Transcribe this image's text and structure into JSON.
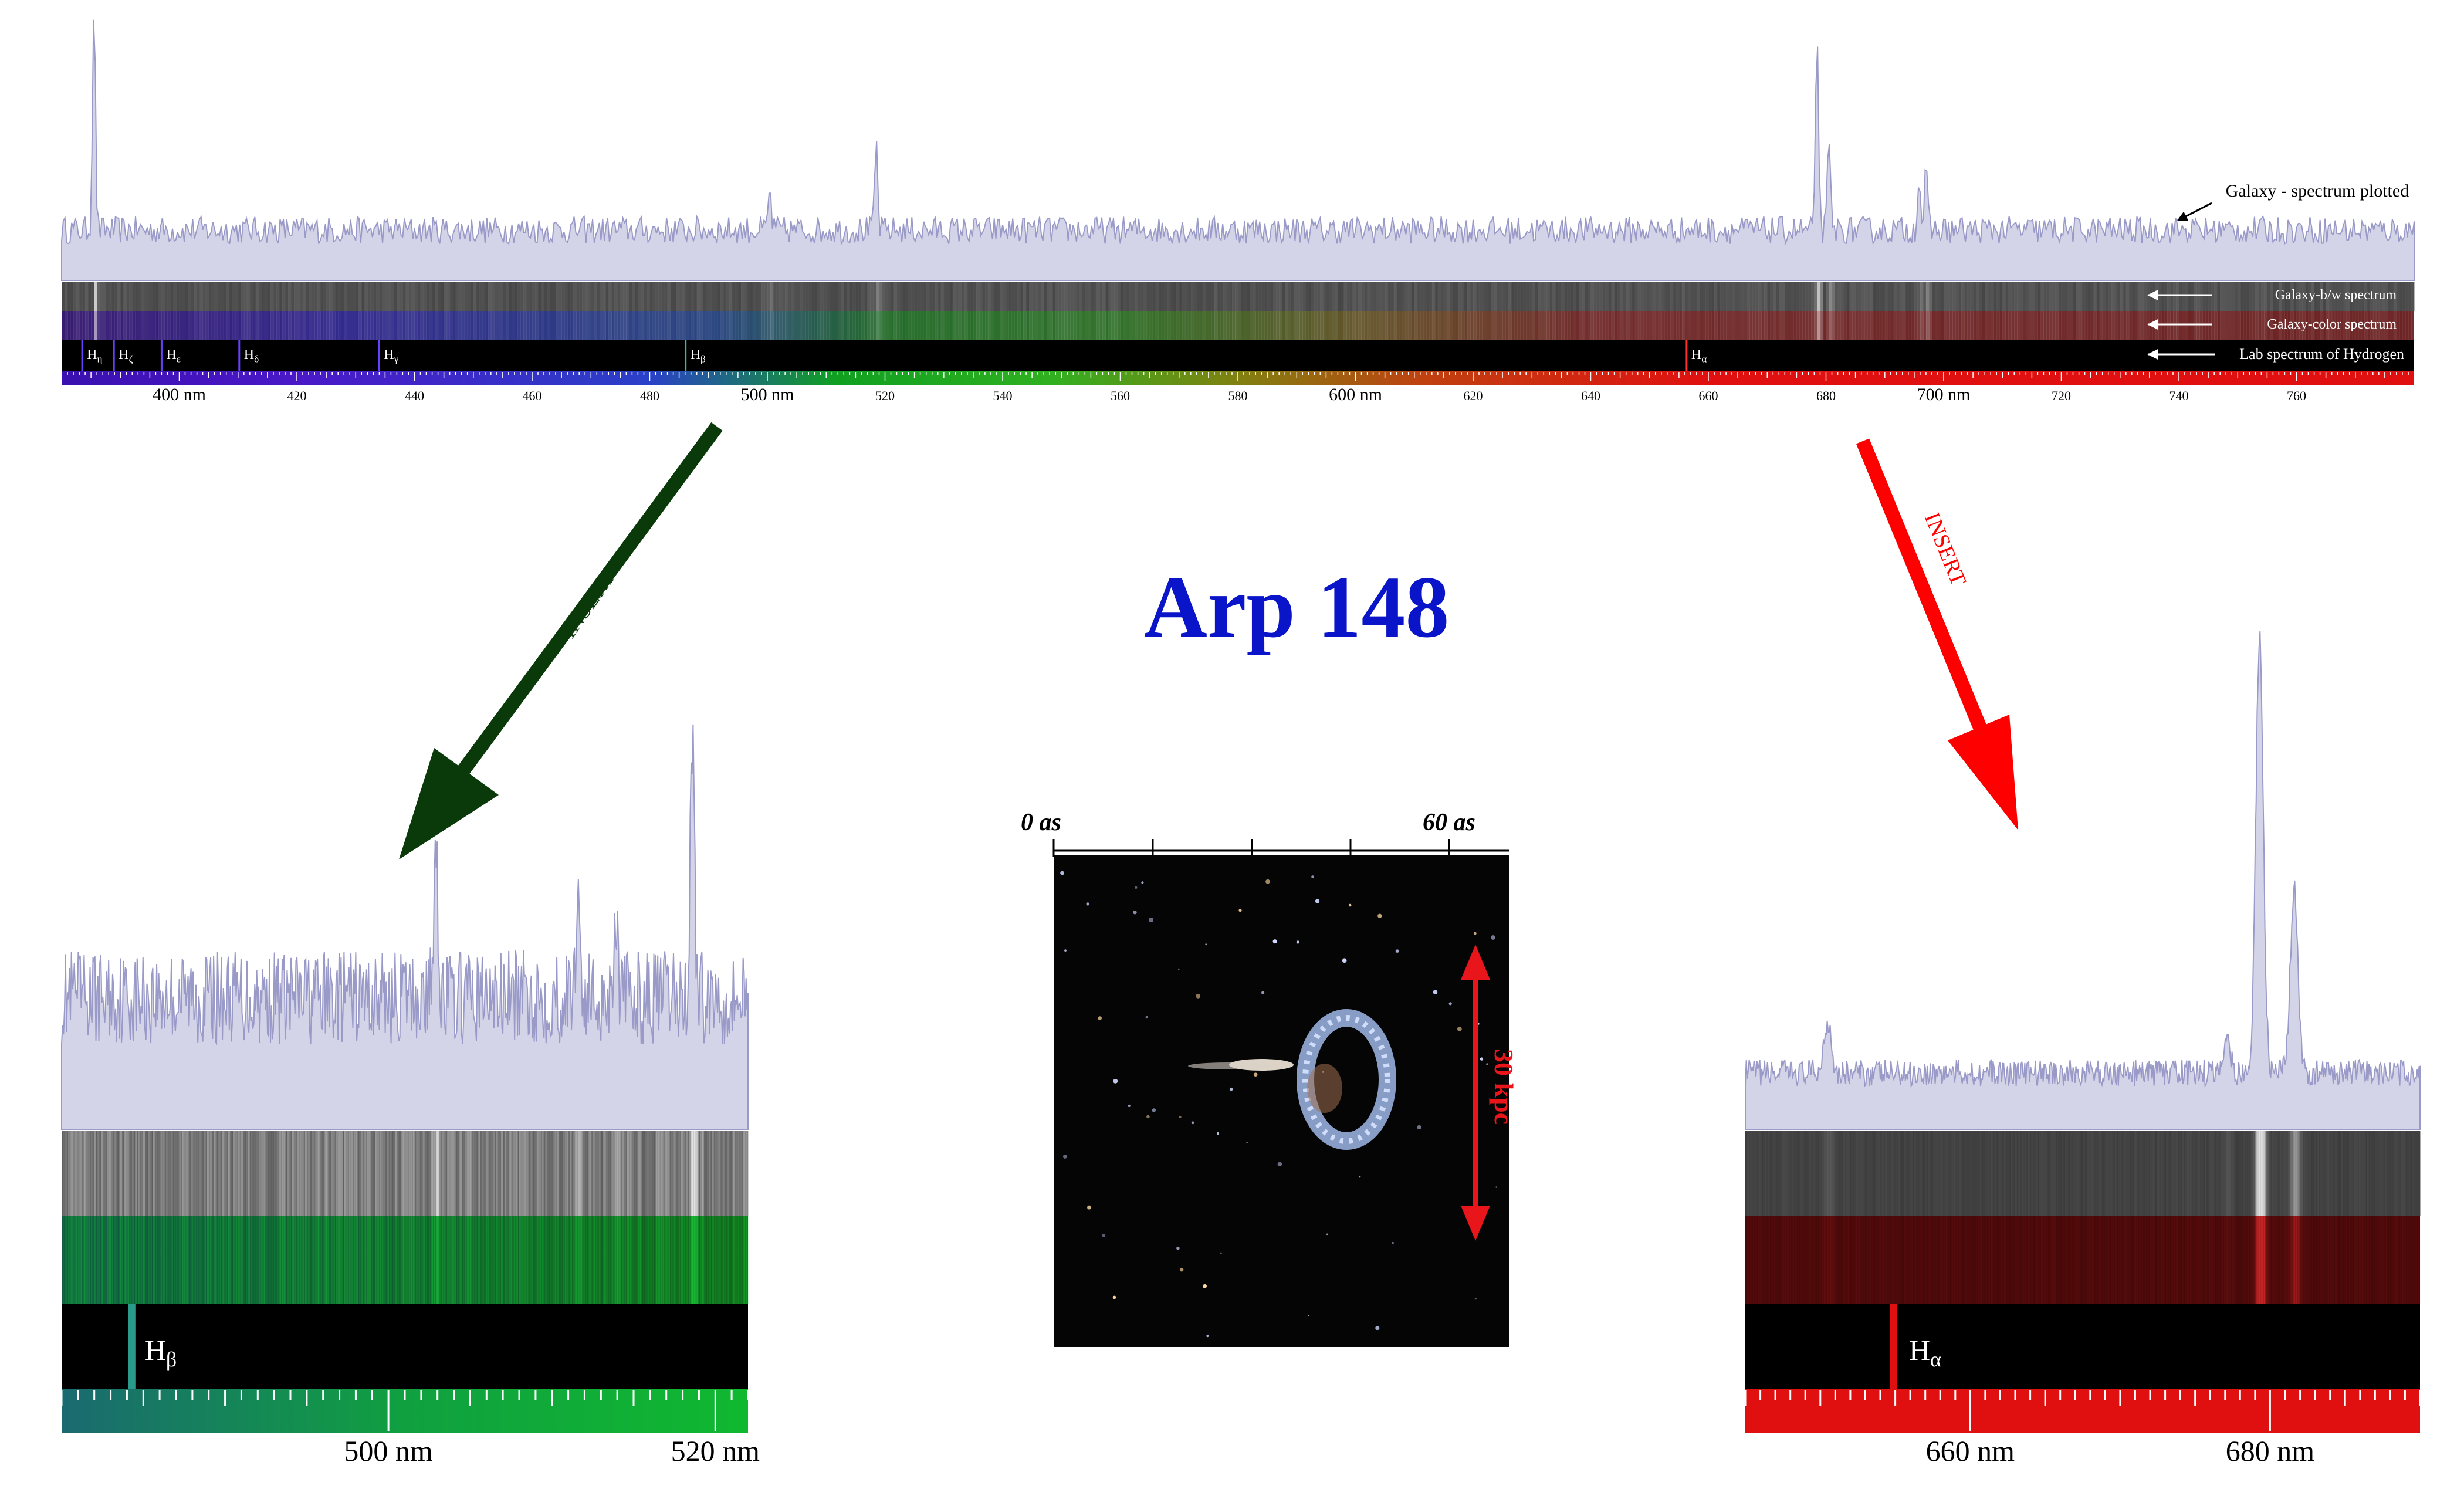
{
  "title": "Arp 148",
  "colors": {
    "title": "#0a14c8",
    "spectrum_fill": "#d4d4e8",
    "spectrum_line": "#9a9ac8",
    "blue_arrow": "#0a3a0a",
    "red_arrow": "#ff0000",
    "scalebar": "#e8161b"
  },
  "annotations": {
    "spectrum_plotted": "Galaxy - spectrum plotted",
    "bw_spectrum": "Galaxy-b/w spectrum",
    "color_spectrum": "Galaxy-color spectrum",
    "lab_spectrum": "Lab spectrum of Hydrogen"
  },
  "inserts": {
    "left_label": "INSERT",
    "right_label": "INSERT"
  },
  "image_panel": {
    "scale_start": "0 as",
    "scale_end": "60 as",
    "physical_scale": "30 kpc"
  },
  "chart_data": [
    {
      "type": "line",
      "name": "full-spectrum",
      "x_unit": "nm",
      "xlim": [
        380,
        780
      ],
      "tick_labels": [
        {
          "x": 400,
          "label": "400 nm",
          "major": true
        },
        {
          "x": 420,
          "label": "420"
        },
        {
          "x": 440,
          "label": "440"
        },
        {
          "x": 460,
          "label": "460"
        },
        {
          "x": 480,
          "label": "480"
        },
        {
          "x": 500,
          "label": "500 nm",
          "major": true
        },
        {
          "x": 520,
          "label": "520"
        },
        {
          "x": 540,
          "label": "540"
        },
        {
          "x": 560,
          "label": "560"
        },
        {
          "x": 580,
          "label": "580"
        },
        {
          "x": 600,
          "label": "600 nm",
          "major": true
        },
        {
          "x": 620,
          "label": "620"
        },
        {
          "x": 640,
          "label": "640"
        },
        {
          "x": 660,
          "label": "660"
        },
        {
          "x": 680,
          "label": "680"
        },
        {
          "x": 700,
          "label": "700 nm",
          "major": true
        },
        {
          "x": 720,
          "label": "720"
        },
        {
          "x": 740,
          "label": "740"
        },
        {
          "x": 760,
          "label": "760"
        }
      ],
      "hydrogen_lines": [
        {
          "x": 383.5,
          "label": "η"
        },
        {
          "x": 388.9,
          "label": "ζ"
        },
        {
          "x": 397.0,
          "label": "ε"
        },
        {
          "x": 410.2,
          "label": "δ"
        },
        {
          "x": 434.0,
          "label": "γ"
        },
        {
          "x": 486.1,
          "label": "β"
        },
        {
          "x": 656.3,
          "label": "α"
        }
      ],
      "emission_peaks": [
        {
          "x": 385.5,
          "height": 1.0
        },
        {
          "x": 500.4,
          "height": 0.18
        },
        {
          "x": 518.5,
          "height": 0.38
        },
        {
          "x": 678.5,
          "height": 0.86
        },
        {
          "x": 680.5,
          "height": 0.38
        },
        {
          "x": 695.8,
          "height": 0.24
        },
        {
          "x": 697.0,
          "height": 0.26
        }
      ]
    },
    {
      "type": "line",
      "name": "blue-insert",
      "x_unit": "nm",
      "xlim": [
        480,
        522
      ],
      "tick_labels": [
        {
          "x": 500,
          "label": "500 nm"
        },
        {
          "x": 520,
          "label": "520 nm"
        }
      ],
      "hydrogen_lines": [
        {
          "x": 484.3,
          "label": "β"
        }
      ],
      "emission_peaks": [
        {
          "x": 502.9,
          "height": 0.55
        },
        {
          "x": 518.6,
          "height": 0.9
        },
        {
          "x": 511.6,
          "height": 0.35
        },
        {
          "x": 513.9,
          "height": 0.3
        }
      ]
    },
    {
      "type": "line",
      "name": "red-insert",
      "x_unit": "nm",
      "xlim": [
        645,
        690
      ],
      "tick_labels": [
        {
          "x": 660,
          "label": "660 nm"
        },
        {
          "x": 680,
          "label": "680 nm"
        }
      ],
      "hydrogen_lines": [
        {
          "x": 654.9,
          "label": "α"
        }
      ],
      "emission_peaks": [
        {
          "x": 650.5,
          "height": 0.12
        },
        {
          "x": 679.3,
          "height": 1.0
        },
        {
          "x": 681.6,
          "height": 0.42
        },
        {
          "x": 677.1,
          "height": 0.08
        }
      ]
    }
  ]
}
